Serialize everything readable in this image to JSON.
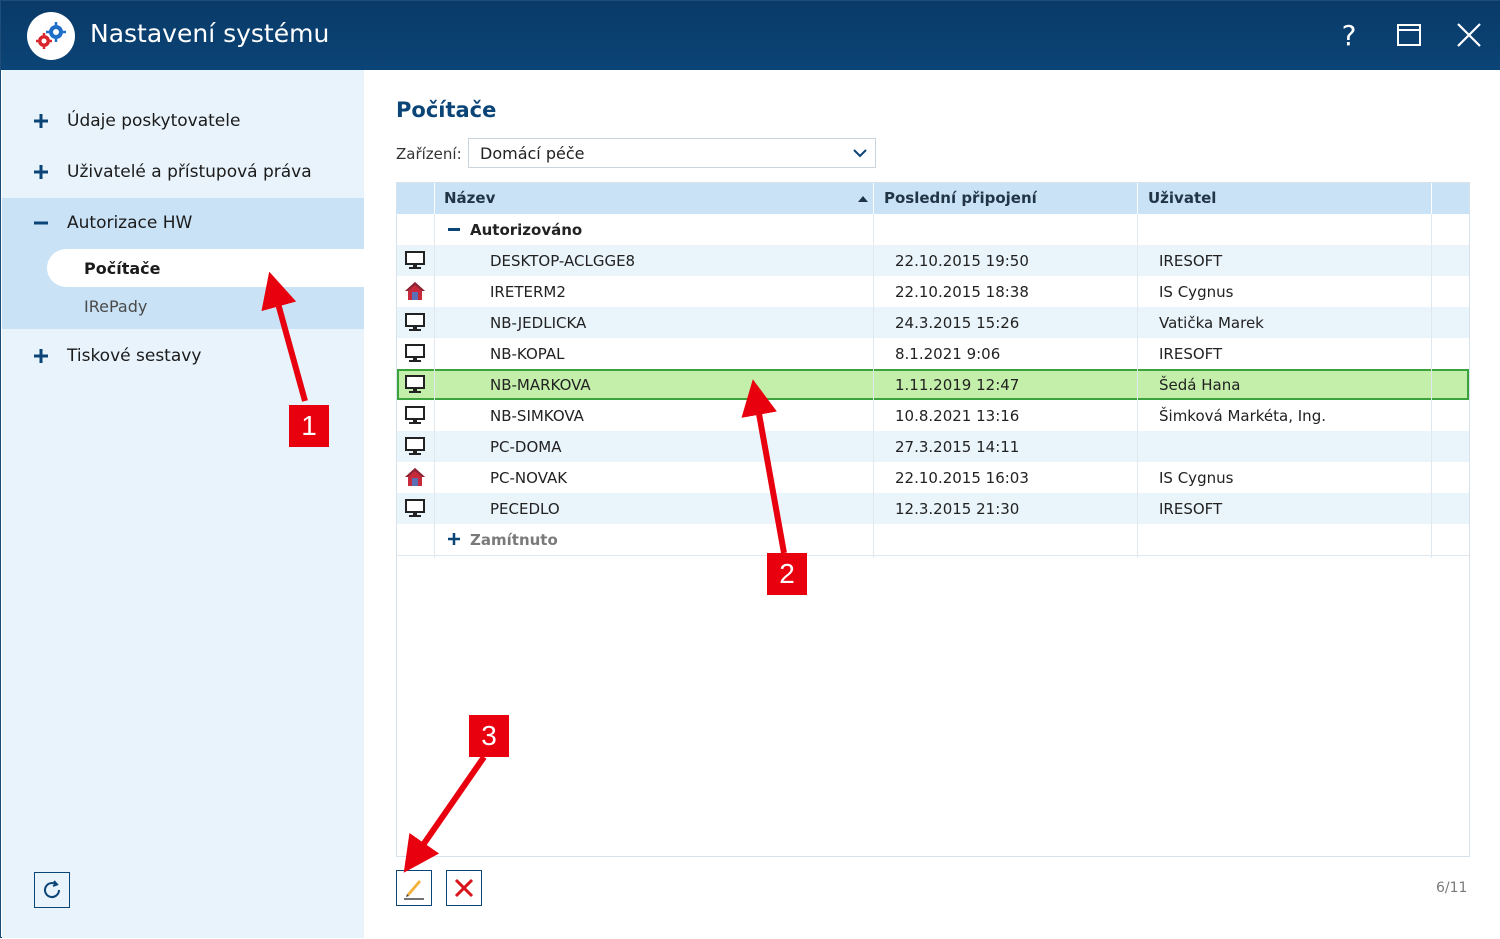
{
  "window": {
    "title": "Nastavení systému",
    "help_label": "?"
  },
  "sidebar": {
    "items": [
      {
        "label": "Údaje poskytovatele"
      },
      {
        "label": "Uživatelé a přístupová práva"
      },
      {
        "label": "Autorizace HW"
      },
      {
        "label": "Tiskové sestavy"
      }
    ],
    "sub_items": [
      {
        "label": "Počítače"
      },
      {
        "label": "IRePady"
      }
    ]
  },
  "main": {
    "title": "Počítače",
    "device_label": "Zařízení:",
    "device_value": "Domácí péče",
    "columns": [
      "Název",
      "Poslední připojení",
      "Uživatel"
    ],
    "groups": [
      "Autorizováno",
      "Zamítnuto"
    ],
    "rows": [
      {
        "icon": "monitor-icon",
        "name": "DESKTOP-ACLGGE8",
        "last": "22.10.2015 19:50",
        "user": "IRESOFT"
      },
      {
        "icon": "home-icon",
        "name": "IRETERM2",
        "last": "22.10.2015 18:38",
        "user": "IS Cygnus"
      },
      {
        "icon": "monitor-icon",
        "name": "NB-JEDLICKA",
        "last": "24.3.2015 15:26",
        "user": "Vatička Marek"
      },
      {
        "icon": "monitor-icon",
        "name": "NB-KOPAL",
        "last": "8.1.2021 9:06",
        "user": "IRESOFT"
      },
      {
        "icon": "monitor-icon",
        "name": "NB-MARKOVA",
        "last": "1.11.2019 12:47",
        "user": "Šedá Hana"
      },
      {
        "icon": "monitor-icon",
        "name": "NB-SIMKOVA",
        "last": "10.8.2021 13:16",
        "user": "Šimková Markéta, Ing."
      },
      {
        "icon": "monitor-icon",
        "name": "PC-DOMA",
        "last": "27.3.2015 14:11",
        "user": ""
      },
      {
        "icon": "home-icon",
        "name": "PC-NOVAK",
        "last": "22.10.2015 16:03",
        "user": "IS Cygnus"
      },
      {
        "icon": "monitor-icon",
        "name": "PECEDLO",
        "last": "12.3.2015 21:30",
        "user": "IRESOFT"
      }
    ],
    "counter": "6/11"
  },
  "annotations": [
    "1",
    "2",
    "3"
  ],
  "colors": {
    "titlebar": "#0b4476",
    "sidebar": "#e8f3fc",
    "sidebar_group": "#c9e2f6",
    "selected_row": "#c3efaa",
    "annotation": "#e8000e"
  }
}
